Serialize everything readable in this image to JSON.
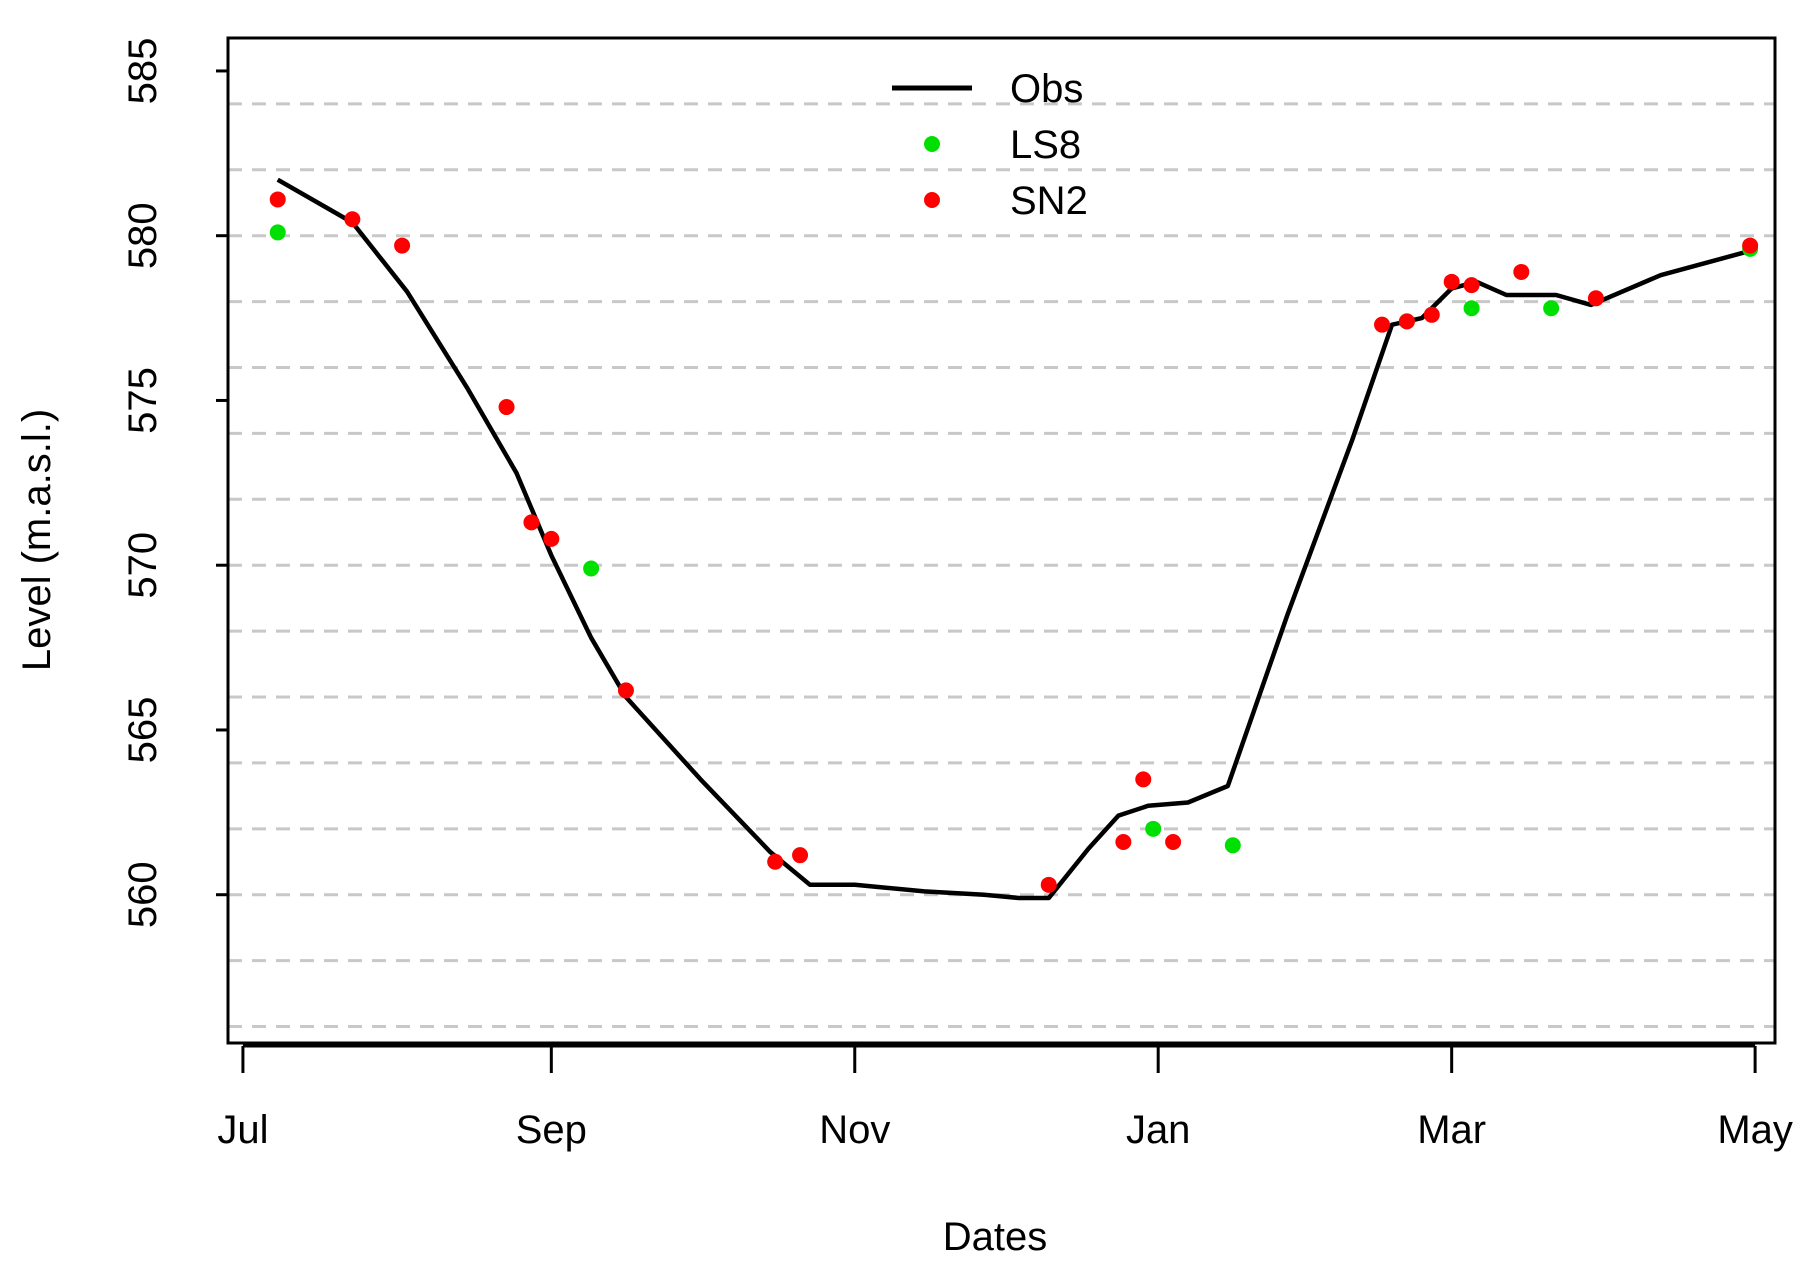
{
  "chart_data": {
    "type": "line",
    "title": "",
    "xlabel": "Dates",
    "ylabel": "Level (m.a.s.l.)",
    "x_type": "date",
    "xlim": [
      "2016-06-28",
      "2017-05-05"
    ],
    "ylim": [
      555.5,
      586
    ],
    "x_ticks": [
      {
        "date": "2016-07-01",
        "label": "Jul"
      },
      {
        "date": "2016-09-01",
        "label": "Sep"
      },
      {
        "date": "2016-11-01",
        "label": "Nov"
      },
      {
        "date": "2017-01-01",
        "label": "Jan"
      },
      {
        "date": "2017-03-01",
        "label": "Mar"
      },
      {
        "date": "2017-05-01",
        "label": "May"
      }
    ],
    "y_ticks": [
      560,
      565,
      570,
      575,
      580,
      585
    ],
    "y_gridlines": [
      556,
      558,
      560,
      562,
      564,
      566,
      568,
      570,
      572,
      574,
      576,
      578,
      580,
      582,
      584,
      586
    ],
    "grid": "horizontal dashed",
    "legend": {
      "position": "top-center",
      "entries": [
        {
          "label": "Obs",
          "kind": "line",
          "color": "#000000"
        },
        {
          "label": "LS8",
          "kind": "point",
          "color": "#00e000"
        },
        {
          "label": "SN2",
          "kind": "point",
          "color": "#ff0000"
        }
      ]
    },
    "series": [
      {
        "name": "Obs",
        "kind": "line",
        "color": "#000000",
        "points": [
          {
            "x": "2016-07-08",
            "y": 581.7
          },
          {
            "x": "2016-07-23",
            "y": 580.4
          },
          {
            "x": "2016-08-03",
            "y": 578.3
          },
          {
            "x": "2016-08-15",
            "y": 575.4
          },
          {
            "x": "2016-08-25",
            "y": 572.8
          },
          {
            "x": "2016-09-01",
            "y": 570.3
          },
          {
            "x": "2016-09-09",
            "y": 567.8
          },
          {
            "x": "2016-09-16",
            "y": 566.0
          },
          {
            "x": "2016-10-01",
            "y": 563.5
          },
          {
            "x": "2016-10-15",
            "y": 561.3
          },
          {
            "x": "2016-10-23",
            "y": 560.3
          },
          {
            "x": "2016-11-01",
            "y": 560.3
          },
          {
            "x": "2016-11-15",
            "y": 560.1
          },
          {
            "x": "2016-11-27",
            "y": 560.0
          },
          {
            "x": "2016-12-04",
            "y": 559.9
          },
          {
            "x": "2016-12-10",
            "y": 559.9
          },
          {
            "x": "2016-12-18",
            "y": 561.4
          },
          {
            "x": "2016-12-24",
            "y": 562.4
          },
          {
            "x": "2016-12-30",
            "y": 562.7
          },
          {
            "x": "2017-01-07",
            "y": 562.8
          },
          {
            "x": "2017-01-15",
            "y": 563.3
          },
          {
            "x": "2017-01-27",
            "y": 568.5
          },
          {
            "x": "2017-02-09",
            "y": 573.8
          },
          {
            "x": "2017-02-17",
            "y": 577.3
          },
          {
            "x": "2017-02-23",
            "y": 577.5
          },
          {
            "x": "2017-03-01",
            "y": 578.4
          },
          {
            "x": "2017-03-06",
            "y": 578.6
          },
          {
            "x": "2017-03-12",
            "y": 578.2
          },
          {
            "x": "2017-03-22",
            "y": 578.2
          },
          {
            "x": "2017-03-29",
            "y": 577.9
          },
          {
            "x": "2017-04-12",
            "y": 578.8
          },
          {
            "x": "2017-04-29",
            "y": 579.5
          }
        ]
      },
      {
        "name": "LS8",
        "kind": "point",
        "color": "#00e000",
        "points": [
          {
            "x": "2016-07-08",
            "y": 580.1
          },
          {
            "x": "2016-09-09",
            "y": 569.9
          },
          {
            "x": "2016-12-31",
            "y": 562.0
          },
          {
            "x": "2017-01-16",
            "y": 561.5
          },
          {
            "x": "2017-02-20",
            "y": 577.4
          },
          {
            "x": "2017-03-05",
            "y": 577.8
          },
          {
            "x": "2017-03-21",
            "y": 577.8
          },
          {
            "x": "2017-04-30",
            "y": 579.6
          }
        ]
      },
      {
        "name": "SN2",
        "kind": "point",
        "color": "#ff0000",
        "points": [
          {
            "x": "2016-07-08",
            "y": 581.1
          },
          {
            "x": "2016-07-23",
            "y": 580.5
          },
          {
            "x": "2016-08-02",
            "y": 579.7
          },
          {
            "x": "2016-08-23",
            "y": 574.8
          },
          {
            "x": "2016-08-28",
            "y": 571.3
          },
          {
            "x": "2016-09-01",
            "y": 570.8
          },
          {
            "x": "2016-09-16",
            "y": 566.2
          },
          {
            "x": "2016-10-16",
            "y": 561.0
          },
          {
            "x": "2016-10-21",
            "y": 561.2
          },
          {
            "x": "2016-12-10",
            "y": 560.3
          },
          {
            "x": "2016-12-25",
            "y": 561.6
          },
          {
            "x": "2016-12-29",
            "y": 563.5
          },
          {
            "x": "2017-01-04",
            "y": 561.6
          },
          {
            "x": "2017-02-15",
            "y": 577.3
          },
          {
            "x": "2017-02-20",
            "y": 577.4
          },
          {
            "x": "2017-02-25",
            "y": 577.6
          },
          {
            "x": "2017-03-01",
            "y": 578.6
          },
          {
            "x": "2017-03-05",
            "y": 578.5
          },
          {
            "x": "2017-03-15",
            "y": 578.9
          },
          {
            "x": "2017-03-30",
            "y": 578.1
          },
          {
            "x": "2017-04-30",
            "y": 579.7
          }
        ]
      }
    ]
  }
}
